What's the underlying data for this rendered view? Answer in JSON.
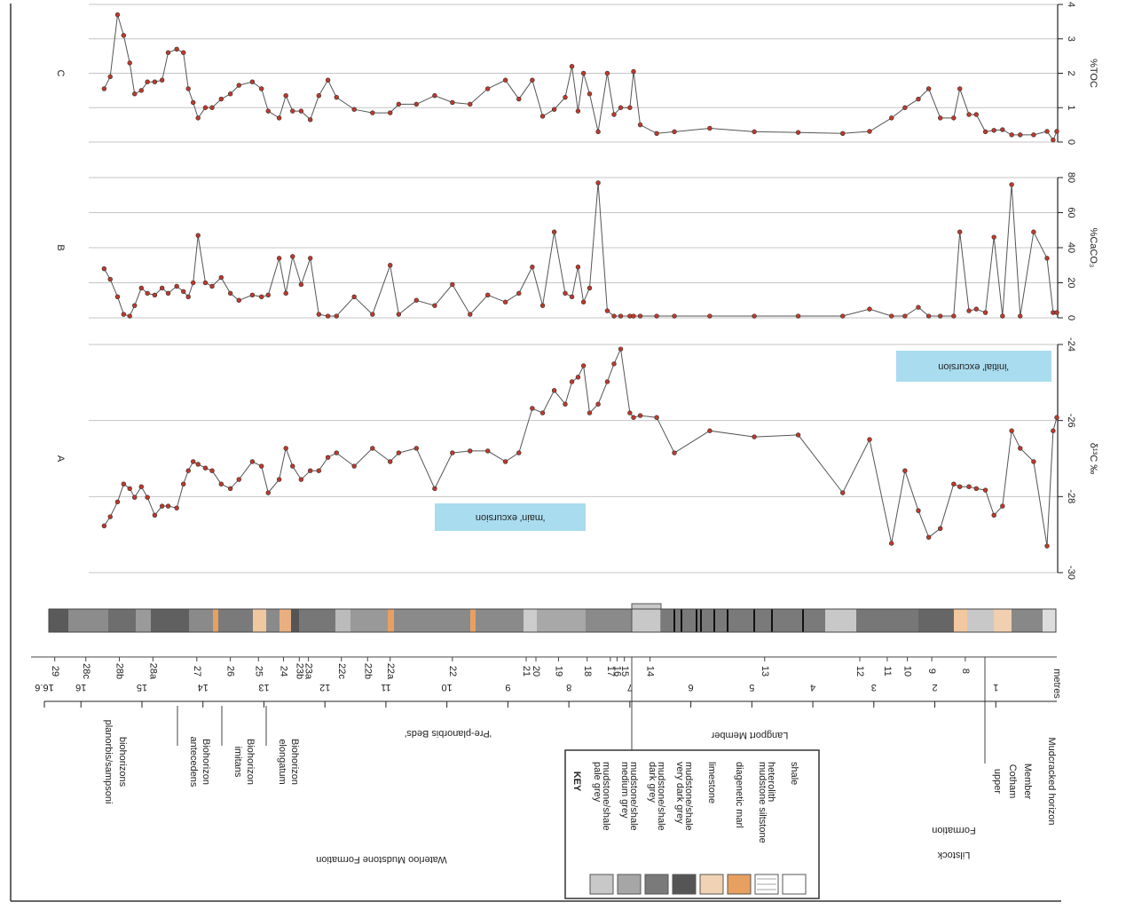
{
  "chart_data": [
    {
      "type": "line",
      "title": "C",
      "y_label": "%TOC",
      "color": "#c0392b",
      "line_color": "#555555",
      "grid": true,
      "xlim": [
        16.6,
        0
      ],
      "ylim": [
        0,
        4
      ],
      "yticks": [
        0,
        1,
        2,
        3,
        4
      ],
      "x": [
        15.62,
        15.52,
        15.4,
        15.3,
        15.2,
        15.12,
        15.01,
        14.91,
        14.79,
        14.67,
        14.57,
        14.43,
        14.32,
        14.24,
        14.16,
        14.08,
        13.96,
        13.85,
        13.7,
        13.55,
        13.41,
        13.19,
        13.04,
        12.93,
        12.75,
        12.64,
        12.53,
        12.39,
        12.24,
        12.1,
        11.95,
        11.81,
        11.52,
        11.22,
        10.93,
        10.79,
        10.5,
        10.2,
        9.91,
        9.62,
        9.33,
        9.04,
        8.82,
        8.6,
        8.43,
        8.24,
        8.06,
        7.95,
        7.85,
        7.76,
        7.66,
        7.52,
        7.37,
        7.26,
        7.15,
        7.0,
        6.94,
        6.83,
        6.56,
        6.27,
        5.69,
        4.96,
        4.24,
        3.51,
        3.07,
        2.71,
        2.49,
        2.27,
        2.1,
        1.91,
        1.69,
        1.59,
        1.44,
        1.32,
        1.17,
        1.03,
        0.89,
        0.74,
        0.6,
        0.38,
        0.16,
        0.06,
        0.0
      ],
      "values": [
        1.55,
        1.9,
        3.7,
        3.1,
        2.3,
        1.4,
        1.5,
        1.75,
        1.75,
        1.8,
        2.6,
        2.7,
        2.6,
        1.55,
        1.15,
        0.7,
        1.0,
        1.0,
        1.25,
        1.4,
        1.65,
        1.75,
        1.55,
        0.9,
        0.7,
        1.35,
        0.9,
        0.9,
        0.65,
        1.35,
        1.8,
        1.3,
        0.95,
        0.85,
        0.85,
        1.1,
        1.1,
        1.35,
        1.15,
        1.1,
        1.55,
        1.8,
        1.25,
        1.8,
        0.75,
        0.95,
        1.3,
        2.2,
        0.9,
        2.0,
        1.4,
        0.3,
        2.0,
        0.8,
        1.0,
        1.0,
        2.05,
        0.5,
        0.25,
        0.3,
        0.4,
        0.3,
        0.28,
        0.25,
        0.31,
        0.7,
        1.0,
        1.25,
        1.55,
        0.7,
        0.7,
        1.55,
        0.8,
        0.8,
        0.3,
        0.34,
        0.36,
        0.21,
        0.21,
        0.21,
        0.31,
        0.06,
        0.31
      ]
    },
    {
      "type": "line",
      "title": "B",
      "y_label": "%CaCO₃",
      "color": "#c0392b",
      "line_color": "#555555",
      "grid": true,
      "xlim": [
        16.6,
        0
      ],
      "ylim": [
        0,
        80
      ],
      "yticks": [
        0,
        20,
        40,
        60,
        80
      ],
      "x": [
        15.62,
        15.52,
        15.4,
        15.3,
        15.2,
        15.12,
        15.01,
        14.91,
        14.79,
        14.67,
        14.57,
        14.43,
        14.32,
        14.24,
        14.16,
        14.08,
        13.96,
        13.85,
        13.7,
        13.55,
        13.41,
        13.19,
        13.04,
        12.93,
        12.75,
        12.64,
        12.53,
        12.39,
        12.24,
        12.1,
        11.95,
        11.81,
        11.52,
        11.22,
        10.93,
        10.79,
        10.5,
        10.2,
        9.91,
        9.62,
        9.33,
        9.04,
        8.82,
        8.6,
        8.43,
        8.24,
        8.06,
        7.95,
        7.85,
        7.76,
        7.66,
        7.52,
        7.37,
        7.26,
        7.15,
        7.0,
        6.94,
        6.83,
        6.56,
        6.27,
        5.69,
        4.96,
        4.24,
        3.51,
        3.07,
        2.71,
        2.49,
        2.27,
        2.1,
        1.91,
        1.69,
        1.59,
        1.44,
        1.32,
        1.17,
        1.03,
        0.89,
        0.74,
        0.6,
        0.38,
        0.16,
        0.06,
        0.0
      ],
      "values": [
        28,
        22,
        12,
        2,
        1,
        7,
        17,
        14,
        13,
        17,
        14,
        18,
        15,
        12,
        20,
        47,
        20,
        18,
        23,
        14,
        10,
        13,
        12,
        13,
        34,
        14,
        35,
        19,
        34,
        2,
        1,
        1,
        12,
        2,
        30,
        2,
        10,
        7,
        19,
        2,
        13,
        9,
        14,
        29,
        7,
        49,
        14,
        12,
        29,
        9,
        17,
        77,
        4,
        1,
        1,
        1,
        1,
        1,
        1,
        1,
        1,
        1,
        1,
        1,
        5,
        1,
        1,
        6,
        1,
        1,
        1,
        49,
        4,
        5,
        3,
        46,
        1,
        76,
        1,
        49,
        34,
        3,
        3
      ]
    },
    {
      "type": "line",
      "title": "A",
      "y_label": "δ¹³C ‰",
      "color": "#c0392b",
      "line_color": "#555555",
      "grid": true,
      "xlim": [
        16.6,
        0
      ],
      "ylim": [
        -30,
        -24
      ],
      "yticks": [
        -24,
        -26,
        -28,
        -30
      ],
      "annotations": [
        "'main' excursion",
        "'initial' excursion"
      ],
      "x": [
        15.62,
        15.52,
        15.4,
        15.3,
        15.2,
        15.12,
        15.01,
        14.91,
        14.79,
        14.67,
        14.57,
        14.43,
        14.32,
        14.24,
        14.16,
        14.08,
        13.96,
        13.85,
        13.7,
        13.55,
        13.41,
        13.19,
        13.04,
        12.93,
        12.75,
        12.64,
        12.53,
        12.39,
        12.24,
        12.1,
        11.95,
        11.81,
        11.52,
        11.22,
        10.93,
        10.79,
        10.5,
        10.2,
        9.91,
        9.62,
        9.33,
        9.04,
        8.82,
        8.6,
        8.43,
        8.24,
        8.06,
        7.95,
        7.85,
        7.76,
        7.66,
        7.52,
        7.37,
        7.26,
        7.15,
        7.0,
        6.94,
        6.83,
        6.56,
        6.27,
        5.69,
        4.96,
        4.24,
        3.51,
        3.07,
        2.71,
        2.49,
        2.27,
        2.1,
        1.91,
        1.69,
        1.59,
        1.44,
        1.32,
        1.17,
        1.03,
        0.89,
        0.74,
        0.6,
        0.38,
        0.16,
        0.06,
        0.0
      ],
      "values": [
        -28.77,
        -28.53,
        -28.14,
        -27.67,
        -27.79,
        -28.02,
        -27.74,
        -28.02,
        -28.49,
        -28.25,
        -28.25,
        -28.3,
        -27.67,
        -27.32,
        -27.08,
        -27.15,
        -27.25,
        -27.32,
        -27.67,
        -27.79,
        -27.55,
        -27.08,
        -27.2,
        -27.9,
        -27.55,
        -26.73,
        -27.2,
        -27.55,
        -27.32,
        -27.32,
        -26.97,
        -26.85,
        -27.2,
        -26.73,
        -27.08,
        -26.85,
        -26.73,
        -27.79,
        -26.85,
        -26.8,
        -26.8,
        -27.08,
        -26.85,
        -25.68,
        -25.8,
        -25.21,
        -25.57,
        -24.98,
        -24.86,
        -24.56,
        -25.8,
        -25.57,
        -24.98,
        -24.51,
        -24.12,
        -25.8,
        -25.92,
        -25.87,
        -25.92,
        -26.85,
        -26.27,
        -26.43,
        -26.38,
        -27.9,
        -26.5,
        -29.23,
        -27.32,
        -28.37,
        -29.07,
        -28.84,
        -27.67,
        -27.74,
        -27.74,
        -27.79,
        -27.83,
        -28.49,
        -28.25,
        -26.27,
        -26.73,
        -27.08,
        -29.3,
        -26.27,
        -25.92
      ]
    }
  ],
  "stratigraphy": {
    "xlim": [
      16.6,
      0
    ],
    "xticks": [
      16.6,
      16,
      15,
      14,
      13,
      12,
      11,
      10,
      9,
      8,
      7,
      6,
      5,
      4,
      3,
      2,
      1
    ],
    "x_label": "metres",
    "beds": [
      {
        "label": "29",
        "depth": 16.43
      },
      {
        "label": "28c",
        "depth": 15.92
      },
      {
        "label": "28b",
        "depth": 15.37
      },
      {
        "label": "28a",
        "depth": 14.82
      },
      {
        "label": "27",
        "depth": 14.1
      },
      {
        "label": "26",
        "depth": 13.55
      },
      {
        "label": "25",
        "depth": 13.09
      },
      {
        "label": "24",
        "depth": 12.68
      },
      {
        "label": "23b",
        "depth": 12.42
      },
      {
        "label": "23a",
        "depth": 12.27
      },
      {
        "label": "22c",
        "depth": 11.73
      },
      {
        "label": "22b",
        "depth": 11.3
      },
      {
        "label": "22a",
        "depth": 10.93
      },
      {
        "label": "22",
        "depth": 9.91
      },
      {
        "label": "21",
        "depth": 8.7
      },
      {
        "label": "20",
        "depth": 8.54
      },
      {
        "label": "19",
        "depth": 8.17
      },
      {
        "label": "18",
        "depth": 7.7
      },
      {
        "label": "17",
        "depth": 7.32
      },
      {
        "label": "16",
        "depth": 7.21
      },
      {
        "label": "15",
        "depth": 7.09
      },
      {
        "label": "14",
        "depth": 6.67
      },
      {
        "label": "13",
        "depth": 4.79
      },
      {
        "label": "12",
        "depth": 3.23
      },
      {
        "label": "11",
        "depth": 2.78
      },
      {
        "label": "10",
        "depth": 2.45
      },
      {
        "label": "9",
        "depth": 2.05
      },
      {
        "label": "8",
        "depth": 1.5
      }
    ],
    "units": {
      "biohorizons": [
        "planorbis/sampsoni",
        "biohorizons"
      ],
      "antecedens": [
        "antecedens",
        "Biohorizon"
      ],
      "imitans": [
        "imitans",
        "Biohorizon"
      ],
      "elongatum": [
        "elongatum",
        "Biohorizon"
      ],
      "pre_planorbis": "'Pre-planorbis Beds'",
      "langport": "Langport Member",
      "cotham": [
        "upper",
        "Cotham",
        "Member"
      ],
      "mudcracked": "Mudcracked horizon",
      "waterloo": "Waterloo Mudstone Formation",
      "lilstock": [
        "Lilstock",
        "Formation"
      ]
    },
    "key": {
      "title": "KEY",
      "items": [
        {
          "label": [
            "pale grey",
            "mudstone/shale"
          ],
          "color": "#c8c8c8"
        },
        {
          "label": [
            "medium grey",
            "mudstone/shale"
          ],
          "color": "#a6a6a6"
        },
        {
          "label": [
            "dark grey",
            "mudstone/shale"
          ],
          "color": "#7a7a7a"
        },
        {
          "label": [
            "very dark grey",
            "mudstone/shale"
          ],
          "color": "#555555"
        },
        {
          "label": [
            "limestone"
          ],
          "color": "#f2d2b4"
        },
        {
          "label": [
            "diagenetic marl"
          ],
          "color": "#e8a060"
        },
        {
          "label": [
            "mudstone siltstone",
            "heterolith"
          ],
          "color": "#ffffff"
        },
        {
          "label": [
            "shale"
          ],
          "color": "#ffffff"
        }
      ]
    }
  }
}
